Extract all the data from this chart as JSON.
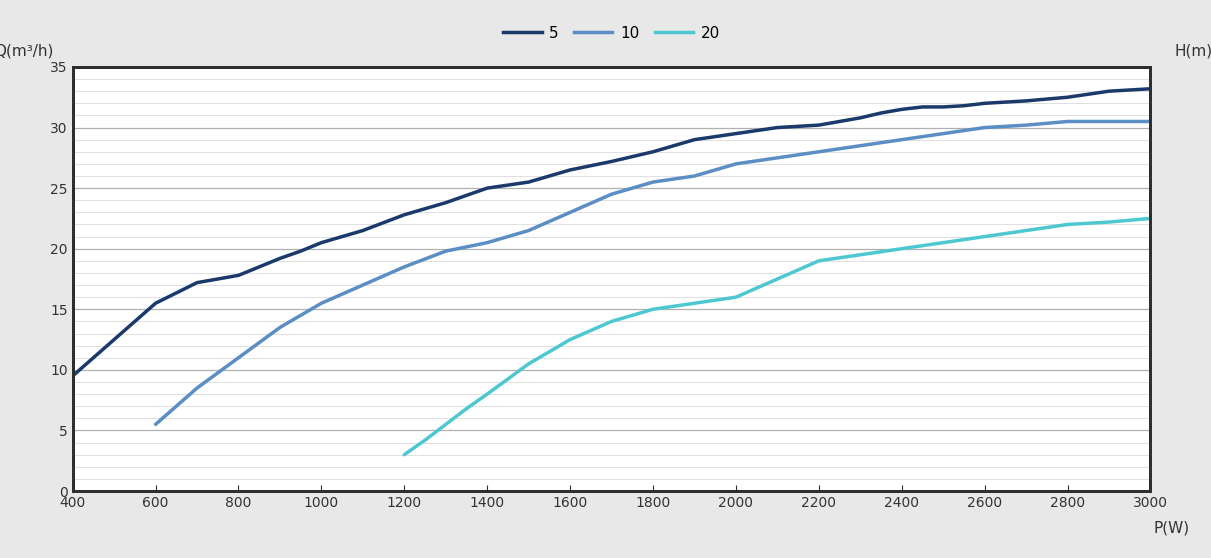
{
  "xlabel": "P(W)",
  "ylabel": "Q(m³/h)",
  "ylabel_right": "H(m)",
  "xlim": [
    400,
    3000
  ],
  "ylim": [
    0,
    35
  ],
  "xticks": [
    400,
    600,
    800,
    1000,
    1200,
    1400,
    1600,
    1800,
    2000,
    2200,
    2400,
    2600,
    2800,
    3000
  ],
  "yticks_major": [
    0,
    5,
    10,
    15,
    20,
    25,
    30,
    35
  ],
  "yticks_minor_step": 1,
  "series": [
    {
      "label": "5",
      "color": "#1b3a6b",
      "linewidth": 2.5,
      "x": [
        400,
        500,
        600,
        700,
        800,
        850,
        900,
        950,
        1000,
        1050,
        1100,
        1200,
        1300,
        1400,
        1500,
        1600,
        1700,
        1800,
        1900,
        2000,
        2100,
        2200,
        2300,
        2350,
        2400,
        2450,
        2500,
        2550,
        2600,
        2700,
        2800,
        2900,
        3000
      ],
      "y": [
        9.5,
        12.5,
        15.5,
        17.2,
        17.8,
        18.5,
        19.2,
        19.8,
        20.5,
        21.0,
        21.5,
        22.8,
        23.8,
        25.0,
        25.5,
        26.5,
        27.2,
        28.0,
        29.0,
        29.5,
        30.0,
        30.2,
        30.8,
        31.2,
        31.5,
        31.7,
        31.7,
        31.8,
        32.0,
        32.2,
        32.5,
        33.0,
        33.2
      ]
    },
    {
      "label": "10",
      "color": "#5b8ec4",
      "linewidth": 2.5,
      "x": [
        600,
        700,
        800,
        900,
        1000,
        1100,
        1200,
        1300,
        1400,
        1500,
        1600,
        1700,
        1800,
        1900,
        2000,
        2100,
        2200,
        2300,
        2400,
        2500,
        2600,
        2700,
        2800,
        2900,
        3000
      ],
      "y": [
        5.5,
        8.5,
        11.0,
        13.5,
        15.5,
        17.0,
        18.5,
        19.8,
        20.5,
        21.5,
        23.0,
        24.5,
        25.5,
        26.0,
        27.0,
        27.5,
        28.0,
        28.5,
        29.0,
        29.5,
        30.0,
        30.2,
        30.5,
        30.5,
        30.5
      ]
    },
    {
      "label": "20",
      "color": "#4ec8d0",
      "linewidth": 2.5,
      "x": [
        1200,
        1250,
        1300,
        1350,
        1400,
        1500,
        1600,
        1700,
        1800,
        1900,
        2000,
        2100,
        2200,
        2300,
        2400,
        2500,
        2600,
        2700,
        2800,
        2900,
        3000
      ],
      "y": [
        3.0,
        4.2,
        5.5,
        6.8,
        8.0,
        10.5,
        12.5,
        14.0,
        15.0,
        15.5,
        16.0,
        17.5,
        19.0,
        19.5,
        20.0,
        20.5,
        21.0,
        21.5,
        22.0,
        22.2,
        22.5
      ]
    }
  ],
  "fig_bg_color": "#e8e8e8",
  "plot_bg_color": "#ffffff",
  "grid_minor_color": "#e0e0e0",
  "grid_major_color": "#b0b0b0",
  "border_color": "#2d2d2d",
  "border_linewidth": 2.0,
  "tick_color": "#333333",
  "tick_labelsize": 10,
  "legend_fontsize": 11,
  "label_fontsize": 11
}
